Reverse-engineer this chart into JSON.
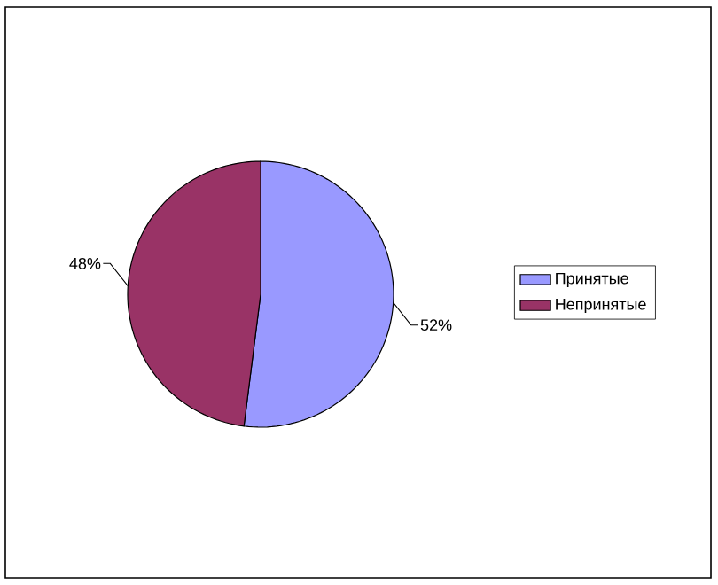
{
  "chart_data": {
    "type": "pie",
    "categories": [
      "Принятые",
      "Непринятые"
    ],
    "values": [
      52,
      48
    ],
    "colors": [
      "#9999ff",
      "#993366"
    ],
    "value_labels": [
      "52%",
      "48%"
    ],
    "legend": "right"
  }
}
